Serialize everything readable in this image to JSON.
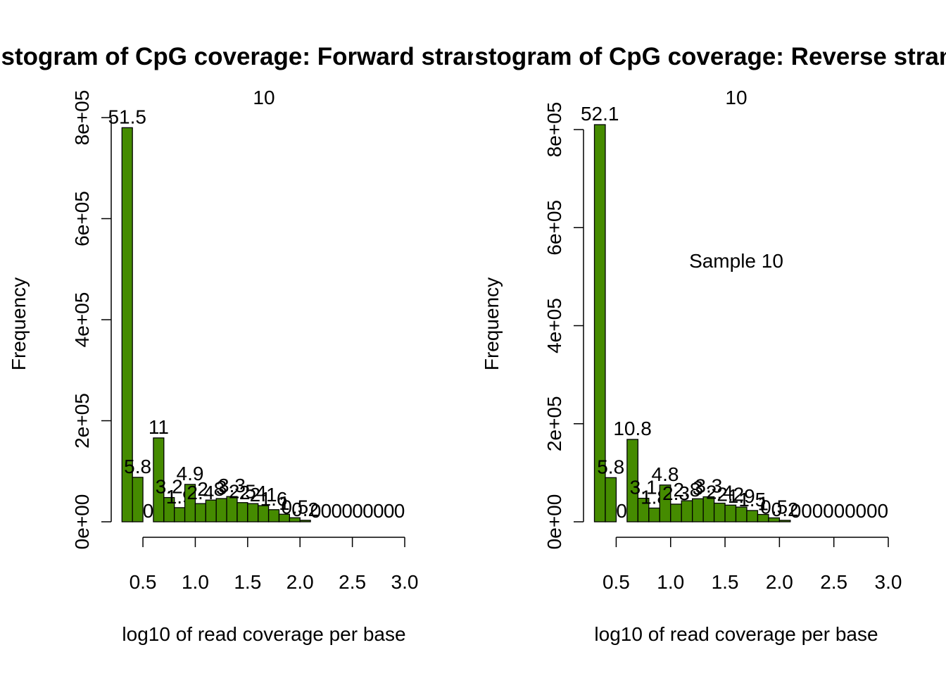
{
  "bar_color": "#458B00",
  "chart_data": [
    {
      "type": "bar",
      "title": "Histogram of CpG coverage: Forward strand",
      "subtitle": "10",
      "annotation": "",
      "xlabel": "log10 of read coverage per base",
      "ylabel": "Frequency",
      "xlim": [
        0.3,
        3.0
      ],
      "ylim": [
        0,
        800000
      ],
      "x_ticks": [
        "0.5",
        "1.0",
        "1.5",
        "2.0",
        "2.5",
        "3.0"
      ],
      "y_ticks": [
        "0e+00",
        "2e+05",
        "4e+05",
        "6e+05",
        "8e+05"
      ],
      "bin_width": 0.1,
      "bins": [
        {
          "x0": 0.3,
          "x1": 0.4,
          "value": 780000,
          "label": "51.5"
        },
        {
          "x0": 0.4,
          "x1": 0.5,
          "value": 88000,
          "label": "5.8"
        },
        {
          "x0": 0.5,
          "x1": 0.6,
          "value": 0,
          "label": "0"
        },
        {
          "x0": 0.6,
          "x1": 0.7,
          "value": 166000,
          "label": "11"
        },
        {
          "x0": 0.7,
          "x1": 0.8,
          "value": 48000,
          "label": "3.2"
        },
        {
          "x0": 0.8,
          "x1": 0.9,
          "value": 28000,
          "label": "1.9"
        },
        {
          "x0": 0.9,
          "x1": 1.0,
          "value": 74000,
          "label": "4.9"
        },
        {
          "x0": 1.0,
          "x1": 1.1,
          "value": 36000,
          "label": "2.4"
        },
        {
          "x0": 1.1,
          "x1": 1.2,
          "value": 43000,
          "label": "2.8"
        },
        {
          "x0": 1.2,
          "x1": 1.3,
          "value": 46000,
          "label": "3"
        },
        {
          "x0": 1.3,
          "x1": 1.4,
          "value": 50000,
          "label": "3.3"
        },
        {
          "x0": 1.4,
          "x1": 1.5,
          "value": 38000,
          "label": "2.5"
        },
        {
          "x0": 1.5,
          "x1": 1.6,
          "value": 36000,
          "label": "2.4"
        },
        {
          "x0": 1.6,
          "x1": 1.7,
          "value": 32000,
          "label": "2.1"
        },
        {
          "x0": 1.7,
          "x1": 1.8,
          "value": 24000,
          "label": "1.6"
        },
        {
          "x0": 1.8,
          "x1": 1.9,
          "value": 15000,
          "label": "1"
        },
        {
          "x0": 1.9,
          "x1": 2.0,
          "value": 8000,
          "label": "0.5"
        },
        {
          "x0": 2.0,
          "x1": 2.1,
          "value": 3000,
          "label": "0.2"
        },
        {
          "x0": 2.1,
          "x1": 2.2,
          "value": 0,
          "label": "0"
        },
        {
          "x0": 2.2,
          "x1": 2.3,
          "value": 0,
          "label": "0"
        },
        {
          "x0": 2.3,
          "x1": 2.4,
          "value": 0,
          "label": "0"
        },
        {
          "x0": 2.4,
          "x1": 2.5,
          "value": 0,
          "label": "0"
        },
        {
          "x0": 2.5,
          "x1": 2.6,
          "value": 0,
          "label": "0"
        },
        {
          "x0": 2.6,
          "x1": 2.7,
          "value": 0,
          "label": "0"
        },
        {
          "x0": 2.7,
          "x1": 2.8,
          "value": 0,
          "label": "0"
        },
        {
          "x0": 2.8,
          "x1": 2.9,
          "value": 0,
          "label": "0"
        },
        {
          "x0": 2.9,
          "x1": 3.0,
          "value": 0,
          "label": "0"
        }
      ]
    },
    {
      "type": "bar",
      "title": "Histogram of CpG coverage: Reverse strand",
      "subtitle": "10",
      "annotation": "Sample 10",
      "xlabel": "log10 of read coverage per base",
      "ylabel": "Frequency",
      "xlim": [
        0.3,
        3.0
      ],
      "ylim": [
        0,
        800000
      ],
      "x_ticks": [
        "0.5",
        "1.0",
        "1.5",
        "2.0",
        "2.5",
        "3.0"
      ],
      "y_ticks": [
        "0e+00",
        "2e+05",
        "4e+05",
        "6e+05",
        "8e+05"
      ],
      "bin_width": 0.1,
      "bins": [
        {
          "x0": 0.3,
          "x1": 0.4,
          "value": 810000,
          "label": "52.1"
        },
        {
          "x0": 0.4,
          "x1": 0.5,
          "value": 90000,
          "label": "5.8"
        },
        {
          "x0": 0.5,
          "x1": 0.6,
          "value": 0,
          "label": "0"
        },
        {
          "x0": 0.6,
          "x1": 0.7,
          "value": 168000,
          "label": "10.8"
        },
        {
          "x0": 0.7,
          "x1": 0.8,
          "value": 48000,
          "label": "3.1"
        },
        {
          "x0": 0.8,
          "x1": 0.9,
          "value": 28000,
          "label": "1.8"
        },
        {
          "x0": 0.9,
          "x1": 1.0,
          "value": 75000,
          "label": "4.8"
        },
        {
          "x0": 1.0,
          "x1": 1.1,
          "value": 36000,
          "label": "2.3"
        },
        {
          "x0": 1.1,
          "x1": 1.2,
          "value": 43000,
          "label": "2.8"
        },
        {
          "x0": 1.2,
          "x1": 1.3,
          "value": 47000,
          "label": "3"
        },
        {
          "x0": 1.3,
          "x1": 1.4,
          "value": 51000,
          "label": "3.3"
        },
        {
          "x0": 1.4,
          "x1": 1.5,
          "value": 38000,
          "label": "2.4"
        },
        {
          "x0": 1.5,
          "x1": 1.6,
          "value": 34000,
          "label": "2.2"
        },
        {
          "x0": 1.6,
          "x1": 1.7,
          "value": 30000,
          "label": "1.9"
        },
        {
          "x0": 1.7,
          "x1": 1.8,
          "value": 23000,
          "label": "1.5"
        },
        {
          "x0": 1.8,
          "x1": 1.9,
          "value": 15000,
          "label": "1"
        },
        {
          "x0": 1.9,
          "x1": 2.0,
          "value": 8000,
          "label": "0.5"
        },
        {
          "x0": 2.0,
          "x1": 2.1,
          "value": 3000,
          "label": "0.2"
        },
        {
          "x0": 2.1,
          "x1": 2.2,
          "value": 0,
          "label": "0"
        },
        {
          "x0": 2.2,
          "x1": 2.3,
          "value": 0,
          "label": "0"
        },
        {
          "x0": 2.3,
          "x1": 2.4,
          "value": 0,
          "label": "0"
        },
        {
          "x0": 2.4,
          "x1": 2.5,
          "value": 0,
          "label": "0"
        },
        {
          "x0": 2.5,
          "x1": 2.6,
          "value": 0,
          "label": "0"
        },
        {
          "x0": 2.6,
          "x1": 2.7,
          "value": 0,
          "label": "0"
        },
        {
          "x0": 2.7,
          "x1": 2.8,
          "value": 0,
          "label": "0"
        },
        {
          "x0": 2.8,
          "x1": 2.9,
          "value": 0,
          "label": "0"
        },
        {
          "x0": 2.9,
          "x1": 3.0,
          "value": 0,
          "label": "0"
        }
      ]
    }
  ]
}
